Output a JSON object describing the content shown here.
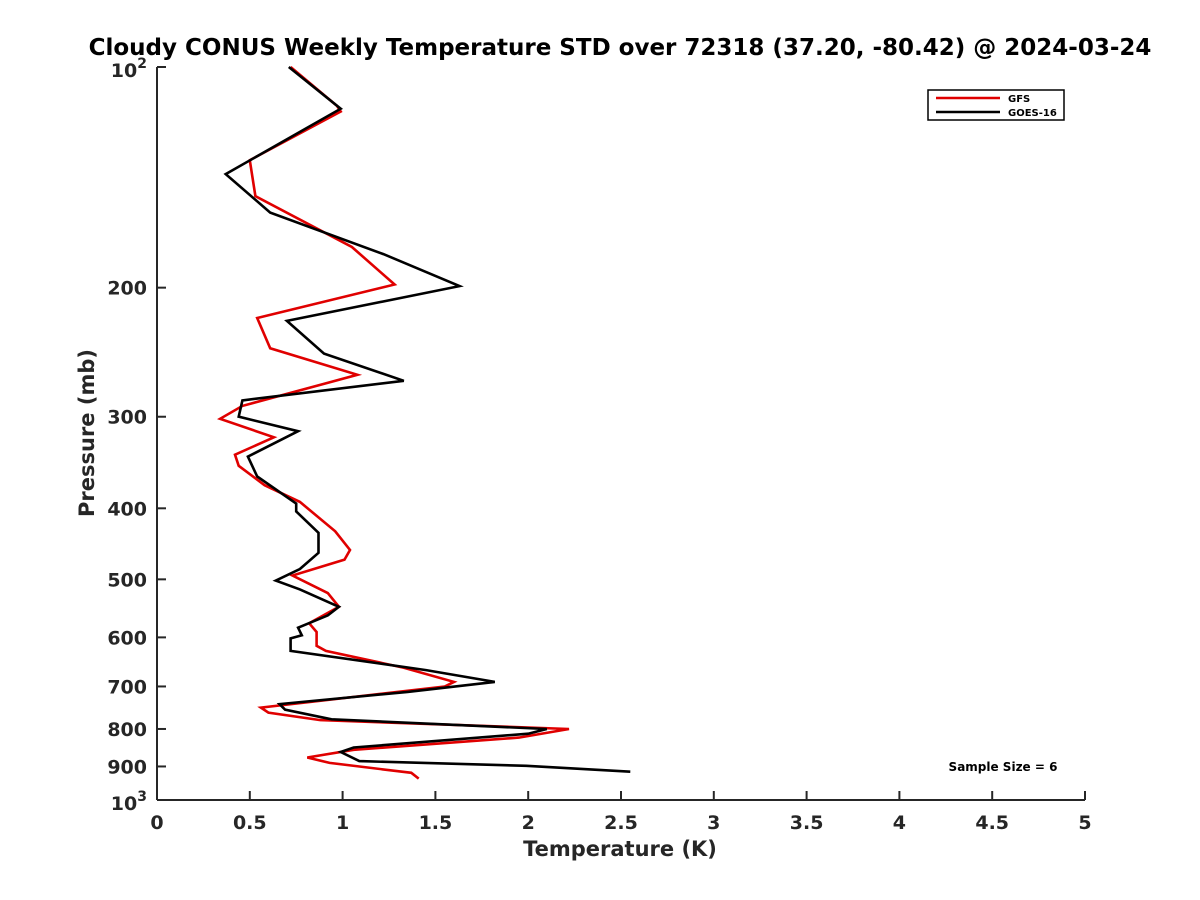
{
  "chart_data": {
    "type": "line",
    "title": "Cloudy CONUS Weekly Temperature STD over 72318 (37.20, -80.42) @ 2024-03-24",
    "xlabel": "Temperature (K)",
    "ylabel": "Pressure (mb)",
    "xlim": [
      0,
      5
    ],
    "ylim": [
      100,
      1000
    ],
    "y_scale": "log",
    "y_reversed": true,
    "x_ticks": [
      "0",
      "0.5",
      "1",
      "1.5",
      "2",
      "2.5",
      "3",
      "3.5",
      "4",
      "4.5",
      "5"
    ],
    "x_tick_values": [
      0,
      0.5,
      1,
      1.5,
      2,
      2.5,
      3,
      3.5,
      4,
      4.5,
      5
    ],
    "y_ticks_plain": [
      {
        "value": 200,
        "label": "200"
      },
      {
        "value": 300,
        "label": "300"
      },
      {
        "value": 400,
        "label": "400"
      },
      {
        "value": 500,
        "label": "500"
      },
      {
        "value": 600,
        "label": "600"
      },
      {
        "value": 700,
        "label": "700"
      },
      {
        "value": 800,
        "label": "800"
      },
      {
        "value": 900,
        "label": "900"
      }
    ],
    "y_ticks_power": [
      {
        "value": 100,
        "base": "10",
        "exp": "2"
      },
      {
        "value": 1000,
        "base": "10",
        "exp": "3"
      }
    ],
    "grid": false,
    "legend_position": "top-right",
    "annotation": "Sample Size = 6",
    "series": [
      {
        "name": "GFS",
        "color": "#e00000",
        "points": [
          [
            0.72,
            100
          ],
          [
            0.97,
            113
          ],
          [
            0.99,
            115
          ],
          [
            0.5,
            134
          ],
          [
            0.53,
            150
          ],
          [
            1.05,
            176
          ],
          [
            1.28,
            198
          ],
          [
            0.54,
            220
          ],
          [
            0.61,
            242
          ],
          [
            1.08,
            263
          ],
          [
            0.46,
            290
          ],
          [
            0.34,
            302
          ],
          [
            0.63,
            320
          ],
          [
            0.42,
            338
          ],
          [
            0.44,
            350
          ],
          [
            0.58,
            372
          ],
          [
            0.77,
            392
          ],
          [
            0.96,
            430
          ],
          [
            1.04,
            456
          ],
          [
            1.01,
            470
          ],
          [
            0.73,
            494
          ],
          [
            0.92,
            522
          ],
          [
            0.98,
            545
          ],
          [
            0.82,
            574
          ],
          [
            0.86,
            590
          ],
          [
            0.86,
            616
          ],
          [
            0.91,
            626
          ],
          [
            1.33,
            660
          ],
          [
            1.6,
            690
          ],
          [
            1.55,
            700
          ],
          [
            0.56,
            748
          ],
          [
            0.6,
            760
          ],
          [
            0.88,
            778
          ],
          [
            2.22,
            800
          ],
          [
            1.95,
            822
          ],
          [
            1.06,
            854
          ],
          [
            0.81,
            875
          ],
          [
            0.93,
            890
          ],
          [
            1.37,
            918
          ],
          [
            1.41,
            935
          ]
        ]
      },
      {
        "name": "GOES-16",
        "color": "#000000",
        "points": [
          [
            0.71,
            100
          ],
          [
            0.99,
            114
          ],
          [
            0.37,
            140
          ],
          [
            0.61,
            158
          ],
          [
            1.22,
            180
          ],
          [
            1.63,
            199
          ],
          [
            0.7,
            222
          ],
          [
            0.9,
            246
          ],
          [
            1.33,
            268
          ],
          [
            0.46,
            285
          ],
          [
            0.44,
            300
          ],
          [
            0.76,
            314
          ],
          [
            0.49,
            340
          ],
          [
            0.54,
            362
          ],
          [
            0.75,
            394
          ],
          [
            0.75,
            404
          ],
          [
            0.87,
            432
          ],
          [
            0.87,
            460
          ],
          [
            0.77,
            484
          ],
          [
            0.64,
            502
          ],
          [
            0.77,
            516
          ],
          [
            0.98,
            545
          ],
          [
            0.92,
            560
          ],
          [
            0.76,
            582
          ],
          [
            0.78,
            596
          ],
          [
            0.72,
            602
          ],
          [
            0.72,
            626
          ],
          [
            1.45,
            665
          ],
          [
            1.82,
            690
          ],
          [
            1.35,
            712
          ],
          [
            0.66,
            740
          ],
          [
            0.69,
            753
          ],
          [
            0.94,
            776
          ],
          [
            2.1,
            800
          ],
          [
            2.0,
            812
          ],
          [
            1.06,
            848
          ],
          [
            0.99,
            860
          ],
          [
            1.09,
            885
          ],
          [
            1.99,
            898
          ],
          [
            2.55,
            915
          ]
        ]
      }
    ]
  }
}
